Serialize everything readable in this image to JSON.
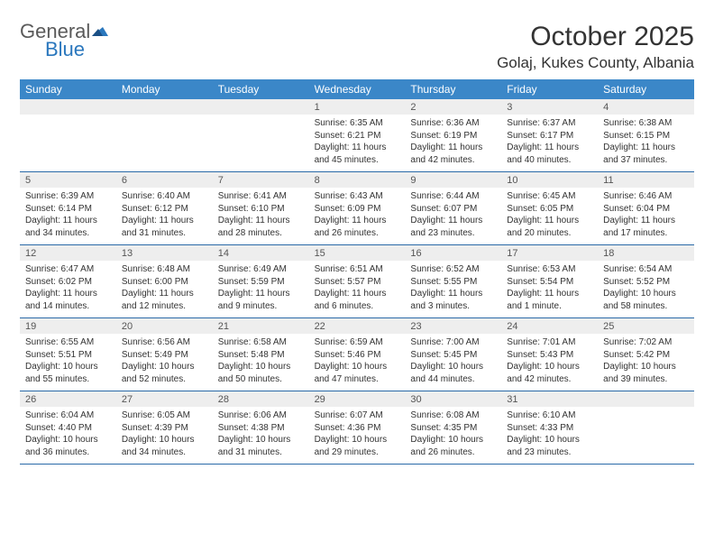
{
  "logo": {
    "text1": "General",
    "text2": "Blue"
  },
  "title": "October 2025",
  "location": "Golaj, Kukes County, Albania",
  "colors": {
    "header_bg": "#3b87c8",
    "header_text": "#ffffff",
    "daynum_bg": "#eeeeee",
    "week_border": "#2a6aa8",
    "logo_gray": "#5a5a5a",
    "logo_blue": "#2a77bd"
  },
  "weekdays": [
    "Sunday",
    "Monday",
    "Tuesday",
    "Wednesday",
    "Thursday",
    "Friday",
    "Saturday"
  ],
  "weeks": [
    [
      {
        "day": "",
        "lines": []
      },
      {
        "day": "",
        "lines": []
      },
      {
        "day": "",
        "lines": []
      },
      {
        "day": "1",
        "lines": [
          "Sunrise: 6:35 AM",
          "Sunset: 6:21 PM",
          "Daylight: 11 hours",
          "and 45 minutes."
        ]
      },
      {
        "day": "2",
        "lines": [
          "Sunrise: 6:36 AM",
          "Sunset: 6:19 PM",
          "Daylight: 11 hours",
          "and 42 minutes."
        ]
      },
      {
        "day": "3",
        "lines": [
          "Sunrise: 6:37 AM",
          "Sunset: 6:17 PM",
          "Daylight: 11 hours",
          "and 40 minutes."
        ]
      },
      {
        "day": "4",
        "lines": [
          "Sunrise: 6:38 AM",
          "Sunset: 6:15 PM",
          "Daylight: 11 hours",
          "and 37 minutes."
        ]
      }
    ],
    [
      {
        "day": "5",
        "lines": [
          "Sunrise: 6:39 AM",
          "Sunset: 6:14 PM",
          "Daylight: 11 hours",
          "and 34 minutes."
        ]
      },
      {
        "day": "6",
        "lines": [
          "Sunrise: 6:40 AM",
          "Sunset: 6:12 PM",
          "Daylight: 11 hours",
          "and 31 minutes."
        ]
      },
      {
        "day": "7",
        "lines": [
          "Sunrise: 6:41 AM",
          "Sunset: 6:10 PM",
          "Daylight: 11 hours",
          "and 28 minutes."
        ]
      },
      {
        "day": "8",
        "lines": [
          "Sunrise: 6:43 AM",
          "Sunset: 6:09 PM",
          "Daylight: 11 hours",
          "and 26 minutes."
        ]
      },
      {
        "day": "9",
        "lines": [
          "Sunrise: 6:44 AM",
          "Sunset: 6:07 PM",
          "Daylight: 11 hours",
          "and 23 minutes."
        ]
      },
      {
        "day": "10",
        "lines": [
          "Sunrise: 6:45 AM",
          "Sunset: 6:05 PM",
          "Daylight: 11 hours",
          "and 20 minutes."
        ]
      },
      {
        "day": "11",
        "lines": [
          "Sunrise: 6:46 AM",
          "Sunset: 6:04 PM",
          "Daylight: 11 hours",
          "and 17 minutes."
        ]
      }
    ],
    [
      {
        "day": "12",
        "lines": [
          "Sunrise: 6:47 AM",
          "Sunset: 6:02 PM",
          "Daylight: 11 hours",
          "and 14 minutes."
        ]
      },
      {
        "day": "13",
        "lines": [
          "Sunrise: 6:48 AM",
          "Sunset: 6:00 PM",
          "Daylight: 11 hours",
          "and 12 minutes."
        ]
      },
      {
        "day": "14",
        "lines": [
          "Sunrise: 6:49 AM",
          "Sunset: 5:59 PM",
          "Daylight: 11 hours",
          "and 9 minutes."
        ]
      },
      {
        "day": "15",
        "lines": [
          "Sunrise: 6:51 AM",
          "Sunset: 5:57 PM",
          "Daylight: 11 hours",
          "and 6 minutes."
        ]
      },
      {
        "day": "16",
        "lines": [
          "Sunrise: 6:52 AM",
          "Sunset: 5:55 PM",
          "Daylight: 11 hours",
          "and 3 minutes."
        ]
      },
      {
        "day": "17",
        "lines": [
          "Sunrise: 6:53 AM",
          "Sunset: 5:54 PM",
          "Daylight: 11 hours",
          "and 1 minute."
        ]
      },
      {
        "day": "18",
        "lines": [
          "Sunrise: 6:54 AM",
          "Sunset: 5:52 PM",
          "Daylight: 10 hours",
          "and 58 minutes."
        ]
      }
    ],
    [
      {
        "day": "19",
        "lines": [
          "Sunrise: 6:55 AM",
          "Sunset: 5:51 PM",
          "Daylight: 10 hours",
          "and 55 minutes."
        ]
      },
      {
        "day": "20",
        "lines": [
          "Sunrise: 6:56 AM",
          "Sunset: 5:49 PM",
          "Daylight: 10 hours",
          "and 52 minutes."
        ]
      },
      {
        "day": "21",
        "lines": [
          "Sunrise: 6:58 AM",
          "Sunset: 5:48 PM",
          "Daylight: 10 hours",
          "and 50 minutes."
        ]
      },
      {
        "day": "22",
        "lines": [
          "Sunrise: 6:59 AM",
          "Sunset: 5:46 PM",
          "Daylight: 10 hours",
          "and 47 minutes."
        ]
      },
      {
        "day": "23",
        "lines": [
          "Sunrise: 7:00 AM",
          "Sunset: 5:45 PM",
          "Daylight: 10 hours",
          "and 44 minutes."
        ]
      },
      {
        "day": "24",
        "lines": [
          "Sunrise: 7:01 AM",
          "Sunset: 5:43 PM",
          "Daylight: 10 hours",
          "and 42 minutes."
        ]
      },
      {
        "day": "25",
        "lines": [
          "Sunrise: 7:02 AM",
          "Sunset: 5:42 PM",
          "Daylight: 10 hours",
          "and 39 minutes."
        ]
      }
    ],
    [
      {
        "day": "26",
        "lines": [
          "Sunrise: 6:04 AM",
          "Sunset: 4:40 PM",
          "Daylight: 10 hours",
          "and 36 minutes."
        ]
      },
      {
        "day": "27",
        "lines": [
          "Sunrise: 6:05 AM",
          "Sunset: 4:39 PM",
          "Daylight: 10 hours",
          "and 34 minutes."
        ]
      },
      {
        "day": "28",
        "lines": [
          "Sunrise: 6:06 AM",
          "Sunset: 4:38 PM",
          "Daylight: 10 hours",
          "and 31 minutes."
        ]
      },
      {
        "day": "29",
        "lines": [
          "Sunrise: 6:07 AM",
          "Sunset: 4:36 PM",
          "Daylight: 10 hours",
          "and 29 minutes."
        ]
      },
      {
        "day": "30",
        "lines": [
          "Sunrise: 6:08 AM",
          "Sunset: 4:35 PM",
          "Daylight: 10 hours",
          "and 26 minutes."
        ]
      },
      {
        "day": "31",
        "lines": [
          "Sunrise: 6:10 AM",
          "Sunset: 4:33 PM",
          "Daylight: 10 hours",
          "and 23 minutes."
        ]
      },
      {
        "day": "",
        "lines": []
      }
    ]
  ]
}
